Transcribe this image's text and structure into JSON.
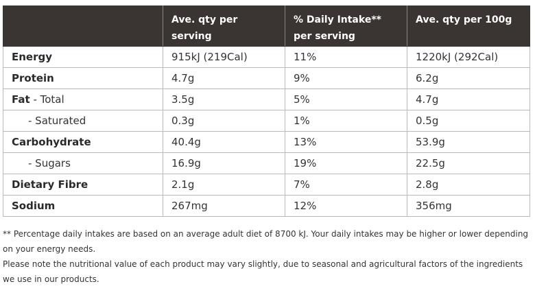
{
  "headers": [
    "",
    "Ave. qty per serving",
    "% Daily Intake** per serving",
    "Ave. qty per 100g"
  ],
  "rows": [
    {
      "name": "Energy",
      "suffix": "",
      "serving": "915kJ (219Cal)",
      "di": "11%",
      "per100": "1220kJ (292Cal)"
    },
    {
      "name": "Protein",
      "suffix": "",
      "serving": "4.7g",
      "di": "9%",
      "per100": "6.2g"
    },
    {
      "name": "Fat",
      "suffix": " - Total",
      "serving": "3.5g",
      "di": "5%",
      "per100": "4.7g"
    },
    {
      "name": "- Saturated",
      "suffix": "",
      "serving": "0.3g",
      "di": "1%",
      "per100": "0.5g"
    },
    {
      "name": "Carbohydrate",
      "suffix": "",
      "serving": "40.4g",
      "di": "13%",
      "per100": "53.9g"
    },
    {
      "name": "- Sugars",
      "suffix": "",
      "serving": "16.9g",
      "di": "19%",
      "per100": "22.5g"
    },
    {
      "name": "Dietary Fibre",
      "suffix": "",
      "serving": "2.1g",
      "di": "7%",
      "per100": "2.8g"
    },
    {
      "name": "Sodium",
      "suffix": "",
      "serving": "267mg",
      "di": "12%",
      "per100": "356mg"
    }
  ],
  "footnotes": [
    "** Percentage daily intakes are based on an average adult diet of 8700 kJ. Your daily intakes may be higher or lower depending on your energy needs.",
    "Please note the nutritional value of each product may vary slightly, due to seasonal and agricultural factors of the ingredients we use in our products."
  ]
}
